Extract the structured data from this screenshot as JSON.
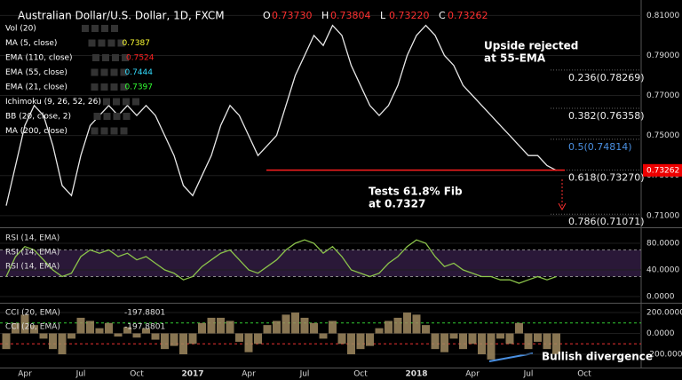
{
  "chart_data": [
    {
      "type": "line",
      "title": "Australian Dollar/U.S. Dollar, 1D, FXCM",
      "ohlc": [
        {
          "name": "O",
          "value": 0.7373,
          "label": "0.73730"
        },
        {
          "name": "H",
          "value": 0.73804,
          "label": "0.73804"
        },
        {
          "name": "L",
          "value": 0.7322,
          "label": "0.73220"
        },
        {
          "name": "C",
          "value": 0.73262,
          "label": "0.73262"
        }
      ],
      "indicators": [
        {
          "name": "Vol (20)"
        },
        {
          "name": "MA (5, close)",
          "value": 0.7387,
          "color": "#ffff33"
        },
        {
          "name": "EMA (110, close)",
          "value": 0.7524,
          "color": "#ff2020"
        },
        {
          "name": "EMA (55, close)",
          "value": 0.7444,
          "color": "#33ddff"
        },
        {
          "name": "EMA (21, close)",
          "value": 0.7397,
          "color": "#33ff33"
        },
        {
          "name": "Ichimoku (9, 26, 52, 26)"
        },
        {
          "name": "BB (20, close, 2)"
        },
        {
          "name": "MA (200, close)"
        }
      ],
      "categories": [
        null,
        null,
        "Apr",
        null,
        null,
        null,
        null,
        null,
        "Jul",
        null,
        null,
        null,
        null,
        null,
        "Oct",
        null,
        null,
        null,
        null,
        null,
        "2017",
        null,
        null,
        null,
        null,
        null,
        "Apr",
        null,
        null,
        null,
        null,
        null,
        "Jul",
        null,
        null,
        null,
        null,
        null,
        "Oct",
        null,
        null,
        null,
        null,
        null,
        "2018",
        null,
        null,
        null,
        null,
        null,
        "Apr",
        null,
        null,
        null,
        null,
        null,
        "Jul",
        null,
        null,
        null,
        null,
        null,
        "Oct"
      ],
      "series": [
        {
          "name": "AUD/USD",
          "color": "#e8e8e8",
          "values": [
            0.715,
            0.735,
            0.755,
            0.765,
            0.76,
            0.745,
            0.725,
            0.72,
            0.74,
            0.755,
            0.76,
            0.765,
            0.76,
            0.765,
            0.76,
            0.765,
            0.76,
            0.75,
            0.74,
            0.725,
            0.72,
            0.73,
            0.74,
            0.755,
            0.765,
            0.76,
            0.75,
            0.74,
            0.745,
            0.75,
            0.765,
            0.78,
            0.79,
            0.8,
            0.795,
            0.805,
            0.8,
            0.785,
            0.775,
            0.765,
            0.76,
            0.765,
            0.775,
            0.79,
            0.8,
            0.805,
            0.8,
            0.79,
            0.785,
            0.775,
            0.77,
            0.765,
            0.76,
            0.755,
            0.75,
            0.745,
            0.74,
            0.74,
            0.735,
            0.7326,
            null,
            null,
            null
          ]
        }
      ],
      "ylim": [
        0.7046,
        0.8177
      ],
      "yticks": [
        {
          "value": 0.81,
          "label": "0.81000"
        },
        {
          "value": 0.79,
          "label": "0.79000"
        },
        {
          "value": 0.77,
          "label": "0.77000"
        },
        {
          "value": 0.75,
          "label": "0.75000"
        },
        {
          "value": 0.73,
          "label": "0.73000"
        },
        {
          "value": 0.71,
          "label": "0.71000"
        }
      ],
      "fib_levels": [
        {
          "value": 0.78269,
          "label": "0.236(0.78269)"
        },
        {
          "value": 0.76358,
          "label": "0.382(0.76358)"
        },
        {
          "value": 0.74814,
          "label": "0.5(0.74814)"
        },
        {
          "value": 0.7327,
          "label": "0.618(0.73270)"
        },
        {
          "value": 0.71071,
          "label": "0.786(0.71071)"
        }
      ],
      "last_price": {
        "value": 0.73262,
        "label": "0.73262"
      },
      "annotations": [
        [
          "Upside rejected",
          "at 55-EMA"
        ],
        [
          "Tests 61.8% Fib",
          "at 0.7327"
        ]
      ]
    },
    {
      "type": "line",
      "legend": [
        "RSI (14, EMA)",
        "RSI (14, EMA)",
        "RSI (14, EMA)"
      ],
      "series": [
        {
          "name": "RSI",
          "color": "#8bc34a",
          "values": [
            30,
            60,
            75,
            70,
            55,
            40,
            30,
            35,
            60,
            70,
            65,
            70,
            60,
            65,
            55,
            60,
            50,
            40,
            35,
            25,
            30,
            45,
            55,
            65,
            70,
            55,
            40,
            35,
            45,
            55,
            70,
            80,
            85,
            80,
            65,
            75,
            60,
            40,
            35,
            30,
            35,
            50,
            60,
            75,
            85,
            80,
            60,
            45,
            50,
            40,
            35,
            30,
            30,
            25,
            25,
            20,
            25,
            30,
            25,
            30,
            null,
            null,
            null
          ]
        }
      ],
      "ylim": [
        -8,
        101.3
      ],
      "yticks": [
        {
          "value": 80,
          "label": "80.0000"
        },
        {
          "value": 40,
          "label": "40.0000"
        },
        {
          "value": 0,
          "label": "0.0000"
        }
      ],
      "bands": [
        30,
        70
      ]
    },
    {
      "type": "bar",
      "legend": [
        {
          "name": "CCI (20, EMA)",
          "value": -197.8801
        },
        {
          "name": "CCI (20, EMA)",
          "value": -197.8801
        }
      ],
      "series": [
        {
          "name": "CCI",
          "color": "#a08a60",
          "values": [
            -150,
            100,
            180,
            80,
            -50,
            -150,
            -200,
            -50,
            150,
            120,
            50,
            100,
            -30,
            60,
            -40,
            50,
            -60,
            -150,
            -120,
            -200,
            -100,
            100,
            150,
            150,
            120,
            -80,
            -180,
            -100,
            80,
            120,
            180,
            200,
            150,
            100,
            -50,
            120,
            -100,
            -200,
            -150,
            -120,
            50,
            120,
            150,
            200,
            180,
            80,
            -150,
            -180,
            -50,
            -150,
            -100,
            -200,
            -250,
            -50,
            -100,
            100,
            -150,
            -80,
            -150,
            -198,
            null,
            null,
            null
          ]
        }
      ],
      "ylim": [
        -319,
        277
      ],
      "yticks": [
        {
          "value": 200,
          "label": "200.0000"
        },
        {
          "value": 0,
          "label": "0.0000"
        },
        {
          "value": -200,
          "label": "-200.0000"
        }
      ],
      "bands": [
        -100,
        100
      ],
      "annotation": "Bullish divergence"
    }
  ]
}
